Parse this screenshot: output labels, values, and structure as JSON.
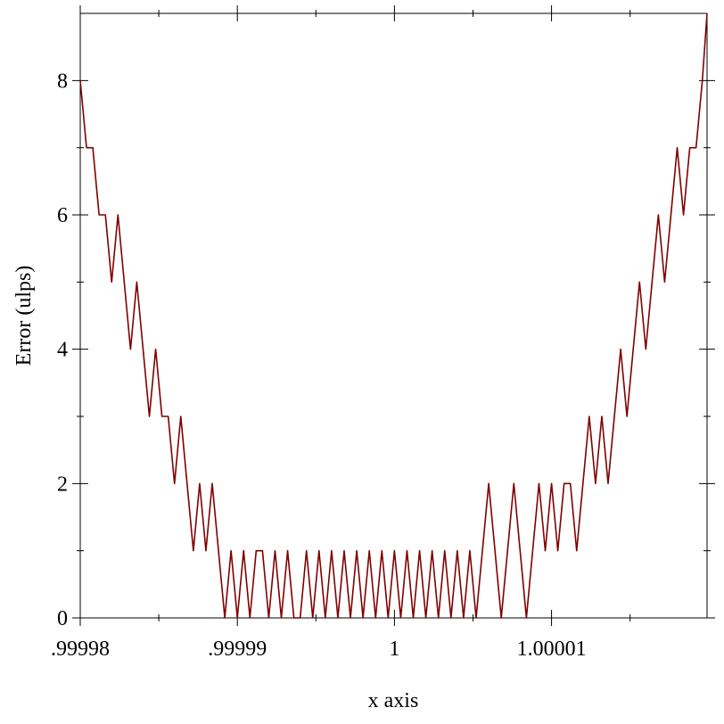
{
  "chart_data": {
    "type": "line",
    "xlabel": "x axis",
    "ylabel": "Error (ulps)",
    "xlim": [
      0.99998,
      1.0000199
    ],
    "ylim": [
      0,
      9
    ],
    "xticks": [
      {
        "value": 0.99998,
        "label": ".99998"
      },
      {
        "value": 0.99999,
        "label": ".99999"
      },
      1,
      1.00001
    ],
    "xminor": [
      0.999985,
      0.999995,
      1.000005,
      1.000015
    ],
    "yticks": [
      0,
      2,
      4,
      6,
      8
    ],
    "yminor": [
      1,
      3,
      5,
      7
    ],
    "series": [
      {
        "color": "#7f0000",
        "x": [
          0.99998,
          0.9999804,
          0.9999808,
          0.9999812,
          0.9999816,
          0.999982,
          0.9999824,
          0.9999828,
          0.9999832,
          0.9999836,
          0.999984,
          0.9999844,
          0.9999848,
          0.9999852,
          0.9999856,
          0.999986,
          0.9999864,
          0.9999868,
          0.9999872,
          0.9999876,
          0.999988,
          0.9999884,
          0.9999888,
          0.9999892,
          0.9999896,
          0.99999,
          0.9999904,
          0.9999908,
          0.9999912,
          0.9999916,
          0.999992,
          0.9999924,
          0.9999928,
          0.9999932,
          0.9999936,
          0.999994,
          0.9999944,
          0.9999948,
          0.9999952,
          0.9999956,
          0.999996,
          0.9999964,
          0.9999968,
          0.9999972,
          0.9999976,
          0.999998,
          0.9999984,
          0.9999988,
          0.9999992,
          0.9999996,
          1,
          1.0000004,
          1.0000008,
          1.0000012,
          1.0000016,
          1.000002,
          1.0000024,
          1.0000028,
          1.0000032,
          1.0000036,
          1.000004,
          1.0000044,
          1.0000048,
          1.0000052,
          1.0000056,
          1.000006,
          1.0000064,
          1.0000068,
          1.0000072,
          1.0000076,
          1.000008,
          1.0000084,
          1.0000088,
          1.0000092,
          1.0000096,
          1.00001,
          1.0000104,
          1.0000108,
          1.0000112,
          1.0000116,
          1.000012,
          1.0000124,
          1.0000128,
          1.0000132,
          1.0000136,
          1.000014,
          1.0000144,
          1.0000148,
          1.0000152,
          1.0000156,
          1.000016,
          1.0000164,
          1.0000168,
          1.0000172,
          1.0000176,
          1.000018,
          1.0000184,
          1.0000188,
          1.0000192,
          1.0000196,
          1.0000199
        ],
        "values": [
          8,
          7,
          7,
          6,
          6,
          5,
          6,
          5,
          4,
          5,
          4,
          3,
          4,
          3,
          3,
          2,
          3,
          2,
          1,
          2,
          1,
          2,
          1,
          0,
          1,
          0,
          1,
          0,
          1,
          1,
          0,
          1,
          0,
          1,
          0,
          0,
          1,
          0,
          1,
          0,
          1,
          0,
          1,
          0,
          1,
          0,
          1,
          0,
          1,
          0,
          1,
          0,
          1,
          0,
          1,
          0,
          1,
          0,
          1,
          0,
          1,
          0,
          1,
          0,
          1,
          2,
          1,
          0,
          1,
          2,
          1,
          0,
          1,
          2,
          1,
          2,
          1,
          2,
          2,
          1,
          2,
          3,
          2,
          3,
          2,
          3,
          4,
          3,
          4,
          5,
          4,
          5,
          6,
          5,
          6,
          7,
          6,
          7,
          7,
          8,
          9
        ]
      }
    ]
  }
}
